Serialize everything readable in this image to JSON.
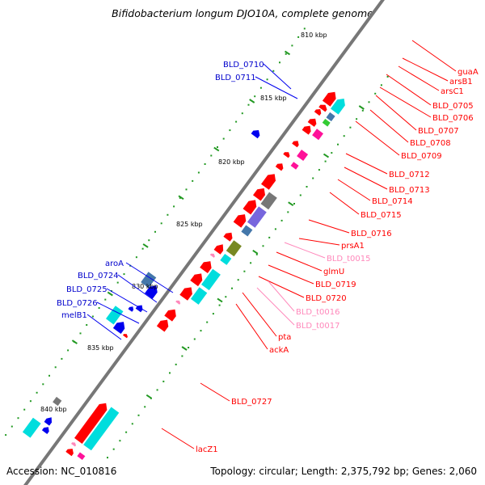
{
  "header": {
    "title": "Bifidobacterium longum DJO10A, complete genome"
  },
  "footer": {
    "accession": "Accession: NC_010816",
    "topology": "Topology: circular; Length: 2,375,792 bp; Genes: 2,060"
  },
  "colors": {
    "backbone": "#777777",
    "cds": "#ff0000",
    "trna": "#ff88bb",
    "cog_blue": "#0000ee",
    "cog_cyan": "#00dddd",
    "cog_magenta": "#ff1199",
    "cog_grey": "#777777",
    "cog_purple": "#7766dd",
    "cog_olive": "#778822",
    "cog_steel": "#4477aa",
    "cog_green": "#33cc33",
    "tick_dot": "#229922"
  },
  "scale": {
    "ticks": [
      {
        "kbp": 810,
        "label": "810 kbp"
      },
      {
        "kbp": 815,
        "label": "815 kbp"
      },
      {
        "kbp": 820,
        "label": "820 kbp"
      },
      {
        "kbp": 825,
        "label": "825 kbp"
      },
      {
        "kbp": 830,
        "label": "830 kbp"
      },
      {
        "kbp": 835,
        "label": "835 kbp"
      },
      {
        "kbp": 840,
        "label": "840 kbp"
      }
    ]
  },
  "features": {
    "right_labels": [
      {
        "text": "guaA",
        "kind": "cds"
      },
      {
        "text": "arsB1",
        "kind": "cds"
      },
      {
        "text": "arsC1",
        "kind": "cds"
      },
      {
        "text": "BLD_0705",
        "kind": "cds"
      },
      {
        "text": "BLD_0706",
        "kind": "cds"
      },
      {
        "text": "BLD_0707",
        "kind": "cds"
      },
      {
        "text": "BLD_0708",
        "kind": "cds"
      },
      {
        "text": "BLD_0709",
        "kind": "cds"
      },
      {
        "text": "BLD_0712",
        "kind": "cds"
      },
      {
        "text": "BLD_0713",
        "kind": "cds"
      },
      {
        "text": "BLD_0714",
        "kind": "cds"
      },
      {
        "text": "BLD_0715",
        "kind": "cds"
      },
      {
        "text": "BLD_0716",
        "kind": "cds"
      },
      {
        "text": "prsA1",
        "kind": "cds"
      },
      {
        "text": "BLD_t0015",
        "kind": "trna"
      },
      {
        "text": "glmU",
        "kind": "cds"
      },
      {
        "text": "BLD_0719",
        "kind": "cds"
      },
      {
        "text": "BLD_0720",
        "kind": "cds"
      },
      {
        "text": "BLD_t0016",
        "kind": "trna"
      },
      {
        "text": "BLD_t0017",
        "kind": "trna"
      },
      {
        "text": "pta",
        "kind": "cds"
      },
      {
        "text": "ackA",
        "kind": "cds"
      },
      {
        "text": "BLD_0727",
        "kind": "cds"
      },
      {
        "text": "lacZ1",
        "kind": "cds"
      }
    ],
    "left_labels": [
      {
        "text": "BLD_0710",
        "kind": "cog"
      },
      {
        "text": "BLD_0711",
        "kind": "cog"
      },
      {
        "text": "aroA",
        "kind": "cog"
      },
      {
        "text": "BLD_0724",
        "kind": "cog"
      },
      {
        "text": "BLD_0725",
        "kind": "cog"
      },
      {
        "text": "BLD_0726",
        "kind": "cog"
      },
      {
        "text": "melB1",
        "kind": "cog"
      }
    ]
  }
}
